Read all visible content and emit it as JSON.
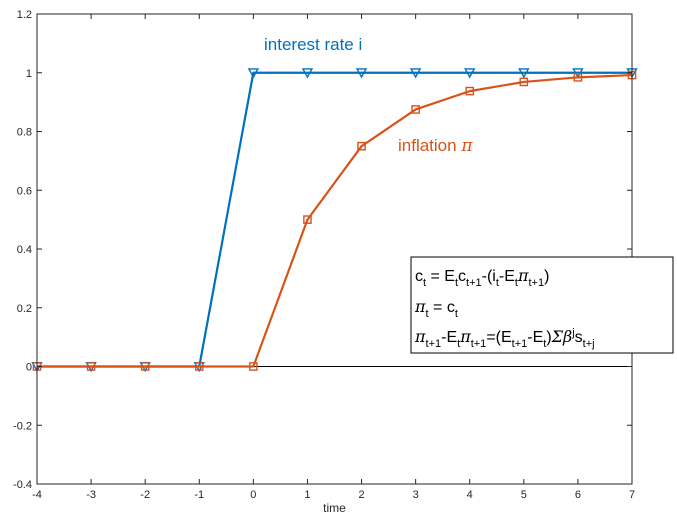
{
  "chart_data": {
    "type": "line",
    "xlabel": "time",
    "ylabel": "",
    "title": "",
    "xlim": [
      -4,
      7
    ],
    "ylim": [
      -0.4,
      1.2
    ],
    "xticks": [
      "-4",
      "-3",
      "-2",
      "-1",
      "0",
      "1",
      "2",
      "3",
      "4",
      "5",
      "6",
      "7"
    ],
    "yticks": [
      "-0.4",
      "-0.2",
      "0",
      "0.2",
      "0.4",
      "0.6",
      "0.8",
      "1",
      "1.2"
    ],
    "grid": false,
    "zero_line": true,
    "x": [
      -4,
      -3,
      -2,
      -1,
      0,
      1,
      2,
      3,
      4,
      5,
      6,
      7
    ],
    "series": [
      {
        "name": "interest rate i",
        "color": "#0072BD",
        "marker": "triangle-down",
        "values": [
          0,
          0,
          0,
          0,
          1,
          1,
          1,
          1,
          1,
          1,
          1,
          1
        ]
      },
      {
        "name": "inflation π",
        "name_text": "inflation ",
        "name_symbol": "π",
        "color": "#D95319",
        "marker": "square",
        "values": [
          0,
          0,
          0,
          0,
          0,
          0.5,
          0.75,
          0.875,
          0.9375,
          0.96875,
          0.984375,
          0.9921875
        ]
      }
    ],
    "equations": [
      {
        "parts": [
          [
            "c",
            ""
          ],
          [
            "t",
            "sub"
          ],
          [
            " = E",
            ""
          ],
          [
            "t",
            "sub"
          ],
          [
            "c",
            ""
          ],
          [
            "t+1",
            "sub"
          ],
          [
            "-(i",
            ""
          ],
          [
            "t",
            "sub"
          ],
          [
            "-E",
            ""
          ],
          [
            "t",
            "sub"
          ],
          [
            "π",
            "greek"
          ],
          [
            "t+1",
            "sub"
          ],
          [
            ")",
            ""
          ]
        ]
      },
      {
        "parts": [
          [
            "π",
            "greek"
          ],
          [
            "t",
            "sub"
          ],
          [
            " = c",
            ""
          ],
          [
            "t",
            "sub"
          ]
        ]
      },
      {
        "parts": [
          [
            "π",
            "greek"
          ],
          [
            "t+1",
            "sub"
          ],
          [
            "-E",
            ""
          ],
          [
            "t",
            "sub"
          ],
          [
            "π",
            "greek"
          ],
          [
            "t+1",
            "sub"
          ],
          [
            "=(E",
            ""
          ],
          [
            "t+1",
            "sub"
          ],
          [
            "-E",
            ""
          ],
          [
            "t",
            "sub"
          ],
          [
            ")",
            ""
          ],
          [
            "Σβ",
            "greek"
          ],
          [
            "j",
            "sup"
          ],
          [
            "s",
            ""
          ],
          [
            "t+j",
            "sub"
          ]
        ]
      }
    ]
  }
}
